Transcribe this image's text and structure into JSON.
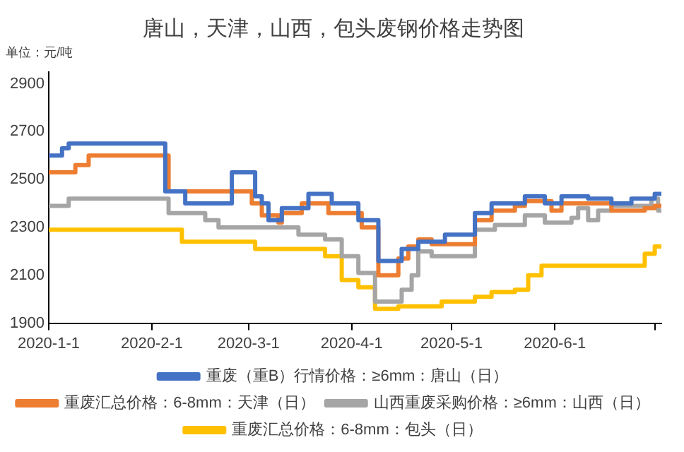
{
  "chart_data": {
    "type": "step",
    "title": "唐山，天津，山西，包头废钢价格走势图",
    "annotations": [
      "单位：元/吨"
    ],
    "xlim": [
      "2020-01-01",
      "2020-07-03"
    ],
    "xticks": [
      {
        "value": "2020-01-01",
        "label": "2020-1-1"
      },
      {
        "value": "2020-02-01",
        "label": "2020-2-1"
      },
      {
        "value": "2020-03-01",
        "label": "2020-3-1"
      },
      {
        "value": "2020-04-01",
        "label": "2020-4-1"
      },
      {
        "value": "2020-05-01",
        "label": "2020-5-1"
      },
      {
        "value": "2020-06-01",
        "label": "2020-6-1"
      },
      {
        "value": "2020-07-01",
        "label": null
      }
    ],
    "ylim": [
      1900,
      2950
    ],
    "yticks": [
      1900,
      2100,
      2300,
      2500,
      2700,
      2900
    ],
    "grid": false,
    "legend": "bottom",
    "marker": "none",
    "line_style": "solid",
    "series": [
      {
        "name": "重废（重B）行情价格：≥6mm：唐山（日）",
        "color": "#4472c4",
        "x": [
          "2020-01-01",
          "2020-01-05",
          "2020-01-07",
          "2020-02-05",
          "2020-02-11",
          "2020-02-25",
          "2020-03-03",
          "2020-03-05",
          "2020-03-07",
          "2020-03-11",
          "2020-03-19",
          "2020-03-26",
          "2020-04-03",
          "2020-04-09",
          "2020-04-16",
          "2020-04-21",
          "2020-04-29",
          "2020-05-08",
          "2020-05-13",
          "2020-05-23",
          "2020-05-29",
          "2020-06-03",
          "2020-06-11",
          "2020-06-18",
          "2020-06-24",
          "2020-07-01",
          "2020-07-03"
        ],
        "values": [
          2600,
          2630,
          2650,
          2450,
          2400,
          2530,
          2430,
          2400,
          2330,
          2380,
          2440,
          2400,
          2330,
          2160,
          2210,
          2240,
          2270,
          2360,
          2400,
          2430,
          2400,
          2430,
          2420,
          2400,
          2420,
          2440,
          2440
        ]
      },
      {
        "name": "重废汇总价格：6-8mm：天津（日）",
        "color": "#ed7d31",
        "x": [
          "2020-01-01",
          "2020-01-09",
          "2020-01-13",
          "2020-02-06",
          "2020-03-02",
          "2020-03-05",
          "2020-03-10",
          "2020-03-11",
          "2020-03-17",
          "2020-03-25",
          "2020-04-04",
          "2020-04-09",
          "2020-04-15",
          "2020-04-18",
          "2020-04-21",
          "2020-04-25",
          "2020-05-08",
          "2020-05-13",
          "2020-05-20",
          "2020-05-23",
          "2020-05-31",
          "2020-06-03",
          "2020-06-18",
          "2020-06-28",
          "2020-07-01",
          "2020-07-03"
        ],
        "values": [
          2530,
          2560,
          2600,
          2450,
          2400,
          2350,
          2320,
          2360,
          2400,
          2360,
          2300,
          2100,
          2170,
          2220,
          2250,
          2230,
          2330,
          2370,
          2390,
          2410,
          2370,
          2400,
          2370,
          2380,
          2390,
          2390
        ]
      },
      {
        "name": "山西重废采购价格：≥6mm：山西（日）",
        "color": "#a5a5a5",
        "x": [
          "2020-01-01",
          "2020-01-07",
          "2020-02-06",
          "2020-02-17",
          "2020-02-21",
          "2020-03-16",
          "2020-03-24",
          "2020-03-29",
          "2020-04-03",
          "2020-04-08",
          "2020-04-16",
          "2020-04-19",
          "2020-04-21",
          "2020-04-25",
          "2020-05-08",
          "2020-05-14",
          "2020-05-23",
          "2020-05-29",
          "2020-06-06",
          "2020-06-08",
          "2020-06-11",
          "2020-06-14",
          "2020-06-18",
          "2020-06-30",
          "2020-07-02",
          "2020-07-03"
        ],
        "values": [
          2390,
          2420,
          2360,
          2330,
          2300,
          2270,
          2250,
          2180,
          2110,
          1990,
          2040,
          2100,
          2200,
          2180,
          2290,
          2310,
          2350,
          2320,
          2340,
          2380,
          2330,
          2370,
          2390,
          2420,
          2370,
          2370
        ]
      },
      {
        "name": "重废汇总价格：6-8mm：包头（日）",
        "color": "#ffc000",
        "x": [
          "2020-01-01",
          "2020-02-10",
          "2020-03-03",
          "2020-03-24",
          "2020-03-29",
          "2020-04-03",
          "2020-04-08",
          "2020-04-15",
          "2020-04-28",
          "2020-05-08",
          "2020-05-13",
          "2020-05-20",
          "2020-05-24",
          "2020-05-28",
          "2020-06-28",
          "2020-07-01",
          "2020-07-03"
        ],
        "values": [
          2290,
          2240,
          2210,
          2180,
          2080,
          2050,
          1960,
          1970,
          1990,
          2010,
          2030,
          2040,
          2100,
          2140,
          2190,
          2220,
          2220
        ]
      }
    ]
  }
}
